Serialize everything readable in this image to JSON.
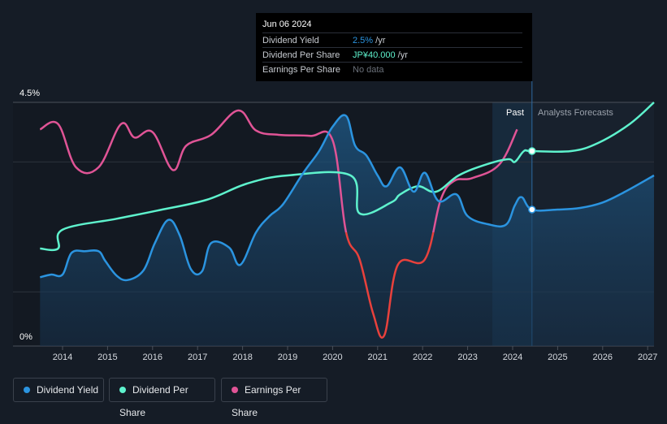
{
  "chart_data": {
    "type": "line",
    "title": "",
    "xlabel": "",
    "ylabel": "",
    "ylim": [
      0,
      4.5
    ],
    "y_ticks": [
      {
        "value": 4.5,
        "label": "4.5%"
      },
      {
        "value": 0,
        "label": "0%"
      }
    ],
    "x_ticks": [
      "2014",
      "2015",
      "2016",
      "2017",
      "2018",
      "2019",
      "2020",
      "2021",
      "2022",
      "2023",
      "2024",
      "2025",
      "2026",
      "2027"
    ],
    "past_label": "Past",
    "forecast_label": "Analysts Forecasts",
    "series": [
      {
        "name": "Dividend Yield",
        "color": "#2b94e0",
        "values": [
          [
            2013.5,
            1.27
          ],
          [
            2013.75,
            1.32
          ],
          [
            2014.0,
            1.32
          ],
          [
            2014.2,
            1.72
          ],
          [
            2014.5,
            1.75
          ],
          [
            2014.8,
            1.75
          ],
          [
            2014.95,
            1.57
          ],
          [
            2015.2,
            1.3
          ],
          [
            2015.45,
            1.22
          ],
          [
            2015.8,
            1.4
          ],
          [
            2016.05,
            1.9
          ],
          [
            2016.35,
            2.33
          ],
          [
            2016.6,
            2.05
          ],
          [
            2016.85,
            1.42
          ],
          [
            2017.1,
            1.38
          ],
          [
            2017.3,
            1.9
          ],
          [
            2017.7,
            1.82
          ],
          [
            2017.95,
            1.5
          ],
          [
            2018.3,
            2.1
          ],
          [
            2018.6,
            2.4
          ],
          [
            2018.9,
            2.62
          ],
          [
            2019.35,
            3.2
          ],
          [
            2019.7,
            3.6
          ],
          [
            2020.0,
            4.05
          ],
          [
            2020.3,
            4.25
          ],
          [
            2020.5,
            3.7
          ],
          [
            2020.75,
            3.52
          ],
          [
            2021.0,
            3.15
          ],
          [
            2021.2,
            2.95
          ],
          [
            2021.5,
            3.3
          ],
          [
            2021.8,
            2.85
          ],
          [
            2022.05,
            3.2
          ],
          [
            2022.35,
            2.68
          ],
          [
            2022.75,
            2.8
          ],
          [
            2023.0,
            2.4
          ],
          [
            2023.45,
            2.25
          ],
          [
            2023.85,
            2.24
          ],
          [
            2024.05,
            2.6
          ],
          [
            2024.2,
            2.75
          ],
          [
            2024.43,
            2.52
          ],
          [
            2025.0,
            2.52
          ],
          [
            2025.5,
            2.55
          ],
          [
            2026.0,
            2.65
          ],
          [
            2026.5,
            2.85
          ],
          [
            2027.2,
            3.15
          ]
        ]
      },
      {
        "name": "Dividend Per Share",
        "color": "#5ef2cd",
        "values": [
          [
            2013.5,
            1.8
          ],
          [
            2013.9,
            1.8
          ],
          [
            2014.0,
            2.15
          ],
          [
            2015.2,
            2.35
          ],
          [
            2016.1,
            2.5
          ],
          [
            2017.2,
            2.7
          ],
          [
            2018.1,
            3.0
          ],
          [
            2019.0,
            3.15
          ],
          [
            2020.4,
            3.15
          ],
          [
            2020.6,
            2.45
          ],
          [
            2021.3,
            2.65
          ],
          [
            2021.5,
            2.8
          ],
          [
            2021.9,
            2.95
          ],
          [
            2022.3,
            2.85
          ],
          [
            2022.8,
            3.15
          ],
          [
            2023.4,
            3.35
          ],
          [
            2023.9,
            3.45
          ],
          [
            2024.05,
            3.4
          ],
          [
            2024.25,
            3.6
          ],
          [
            2024.43,
            3.6
          ],
          [
            2025.3,
            3.6
          ],
          [
            2025.9,
            3.75
          ],
          [
            2026.6,
            4.1
          ],
          [
            2027.2,
            4.5
          ]
        ]
      },
      {
        "name": "Earnings Per Share",
        "color": "#e05496",
        "values": [
          [
            2013.5,
            4.0
          ],
          [
            2013.9,
            4.1
          ],
          [
            2014.3,
            3.3
          ],
          [
            2014.8,
            3.3
          ],
          [
            2015.3,
            4.1
          ],
          [
            2015.6,
            3.85
          ],
          [
            2016.0,
            3.95
          ],
          [
            2016.45,
            3.25
          ],
          [
            2016.75,
            3.7
          ],
          [
            2017.3,
            3.9
          ],
          [
            2017.9,
            4.35
          ],
          [
            2018.3,
            3.98
          ],
          [
            2018.8,
            3.9
          ],
          [
            2019.5,
            3.88
          ],
          [
            2020.0,
            3.8
          ],
          [
            2020.3,
            2.1
          ],
          [
            2020.6,
            1.6
          ],
          [
            2020.9,
            0.6
          ],
          [
            2021.15,
            0.2
          ],
          [
            2021.45,
            1.5
          ],
          [
            2022.05,
            1.6
          ],
          [
            2022.4,
            2.7
          ],
          [
            2022.7,
            3.05
          ],
          [
            2023.1,
            3.1
          ],
          [
            2023.7,
            3.35
          ],
          [
            2024.1,
            4.0
          ]
        ]
      }
    ]
  },
  "tooltip": {
    "date": "Jun 06 2024",
    "rows": [
      {
        "label": "Dividend Yield",
        "value": "2.5%",
        "unit": " /yr",
        "color": "#2b94e0"
      },
      {
        "label": "Dividend Per Share",
        "value": "JP¥40.000",
        "unit": " /yr",
        "color": "#5ef2cd"
      },
      {
        "label": "Earnings Per Share",
        "value": "No data",
        "unit": "",
        "color": "#6a7079"
      }
    ]
  },
  "legend": [
    {
      "label": "Dividend Yield",
      "color": "#2b94e0"
    },
    {
      "label": "Dividend Per Share",
      "color": "#5ef2cd"
    },
    {
      "label": "Earnings Per Share",
      "color": "#e05496"
    }
  ]
}
